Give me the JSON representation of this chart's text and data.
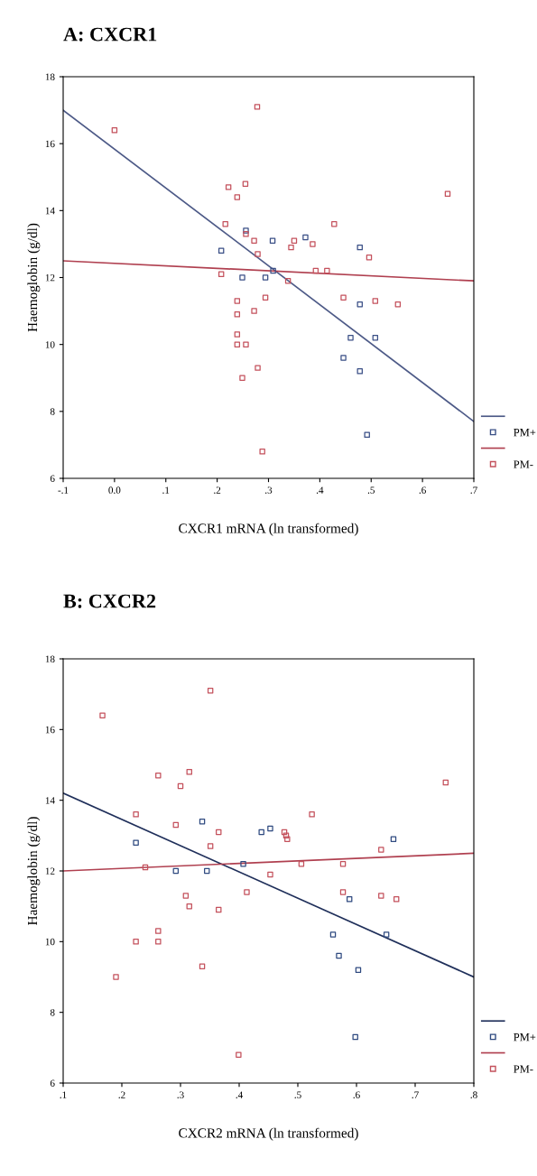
{
  "chart_data": [
    {
      "type": "scatter",
      "title": "A: CXCR1",
      "xlabel": "CXCR1 mRNA (ln transformed)",
      "ylabel": "Haemoglobin (g/dl)",
      "xlim": [
        -0.1,
        0.7
      ],
      "xticks": [
        {
          "value": -0.1,
          "label": "-.1"
        },
        {
          "value": 0.0,
          "label": "0.0"
        },
        {
          "value": 0.1,
          "label": ".1"
        },
        {
          "value": 0.2,
          "label": ".2"
        },
        {
          "value": 0.3,
          "label": ".3"
        },
        {
          "value": 0.4,
          "label": ".4"
        },
        {
          "value": 0.5,
          "label": ".5"
        },
        {
          "value": 0.6,
          "label": ".6"
        },
        {
          "value": 0.7,
          "label": ".7"
        }
      ],
      "ylim": [
        6,
        18
      ],
      "yticks": [
        6,
        8,
        10,
        12,
        14,
        16,
        18
      ],
      "marker": "square",
      "grid": false,
      "legend": "bottom right",
      "series": [
        {
          "type": "line",
          "marker": "none",
          "color": "#4d5a87",
          "x": [
            -0.1,
            0.7
          ],
          "values": [
            17.0,
            7.7
          ]
        },
        {
          "name": "PM+",
          "color": "#3a4f86",
          "x": [
            0.208,
            0.256,
            0.249,
            0.294,
            0.308,
            0.309,
            0.372,
            0.478,
            0.478,
            0.46,
            0.508,
            0.446,
            0.478,
            0.492
          ],
          "values": [
            12.8,
            13.4,
            12.0,
            12.0,
            13.1,
            12.2,
            13.2,
            12.9,
            11.2,
            10.2,
            10.2,
            9.6,
            9.2,
            7.3
          ]
        },
        {
          "type": "line",
          "marker": "none",
          "color": "#b04050",
          "x": [
            -0.1,
            0.7
          ],
          "values": [
            12.5,
            11.9
          ]
        },
        {
          "name": "PM-",
          "color": "#c4515c",
          "x": [
            0.0,
            0.278,
            0.222,
            0.255,
            0.239,
            0.216,
            0.256,
            0.272,
            0.279,
            0.208,
            0.338,
            0.294,
            0.239,
            0.272,
            0.239,
            0.239,
            0.239,
            0.256,
            0.279,
            0.249,
            0.288,
            0.344,
            0.35,
            0.386,
            0.428,
            0.392,
            0.414,
            0.496,
            0.446,
            0.508,
            0.552,
            0.649
          ],
          "values": [
            16.4,
            17.1,
            14.7,
            14.8,
            14.4,
            13.6,
            13.3,
            13.1,
            12.7,
            12.1,
            11.9,
            11.4,
            11.3,
            11.0,
            10.9,
            10.3,
            10.0,
            10.0,
            9.3,
            9.0,
            6.8,
            12.9,
            13.1,
            13.0,
            13.6,
            12.2,
            12.2,
            12.6,
            11.4,
            11.3,
            11.2,
            14.5
          ]
        }
      ]
    },
    {
      "type": "scatter",
      "title": "B: CXCR2",
      "xlabel": "CXCR2 mRNA (ln transformed)",
      "ylabel": "Haemoglobin (g/dl)",
      "xlim": [
        0.1,
        0.8
      ],
      "xticks": [
        {
          "value": 0.1,
          "label": ".1"
        },
        {
          "value": 0.2,
          "label": ".2"
        },
        {
          "value": 0.3,
          "label": ".3"
        },
        {
          "value": 0.4,
          "label": ".4"
        },
        {
          "value": 0.5,
          "label": ".5"
        },
        {
          "value": 0.6,
          "label": ".6"
        },
        {
          "value": 0.7,
          "label": ".7"
        },
        {
          "value": 0.8,
          "label": ".8"
        }
      ],
      "ylim": [
        6,
        18
      ],
      "yticks": [
        6,
        8,
        10,
        12,
        14,
        16,
        18
      ],
      "marker": "square",
      "grid": false,
      "legend": "bottom right",
      "series": [
        {
          "type": "line",
          "marker": "none",
          "color": "#1f2f5a",
          "x": [
            0.1,
            0.8
          ],
          "values": [
            14.2,
            9.0
          ]
        },
        {
          "name": "PM+",
          "color": "#2f4a80",
          "x": [
            0.224,
            0.337,
            0.292,
            0.345,
            0.407,
            0.438,
            0.453,
            0.663,
            0.588,
            0.56,
            0.57,
            0.603,
            0.651,
            0.598
          ],
          "values": [
            12.8,
            13.4,
            12.0,
            12.0,
            12.2,
            13.1,
            13.2,
            12.9,
            11.2,
            10.2,
            9.6,
            9.2,
            10.2,
            7.3
          ]
        },
        {
          "type": "line",
          "marker": "none",
          "color": "#b04050",
          "x": [
            0.1,
            0.8
          ],
          "values": [
            12.0,
            12.5
          ]
        },
        {
          "name": "PM-",
          "color": "#c4515c",
          "x": [
            0.167,
            0.351,
            0.262,
            0.315,
            0.3,
            0.224,
            0.292,
            0.365,
            0.351,
            0.24,
            0.453,
            0.413,
            0.309,
            0.315,
            0.365,
            0.262,
            0.224,
            0.262,
            0.337,
            0.19,
            0.399,
            0.477,
            0.48,
            0.482,
            0.524,
            0.506,
            0.577,
            0.642,
            0.577,
            0.642,
            0.668,
            0.752
          ],
          "values": [
            16.4,
            17.1,
            14.7,
            14.8,
            14.4,
            13.6,
            13.3,
            13.1,
            12.7,
            12.1,
            11.9,
            11.4,
            11.3,
            11.0,
            10.9,
            10.3,
            10.0,
            10.0,
            9.3,
            9.0,
            6.8,
            13.1,
            13.0,
            12.9,
            13.6,
            12.2,
            12.2,
            12.6,
            11.4,
            11.3,
            11.2,
            14.5
          ]
        }
      ]
    }
  ]
}
